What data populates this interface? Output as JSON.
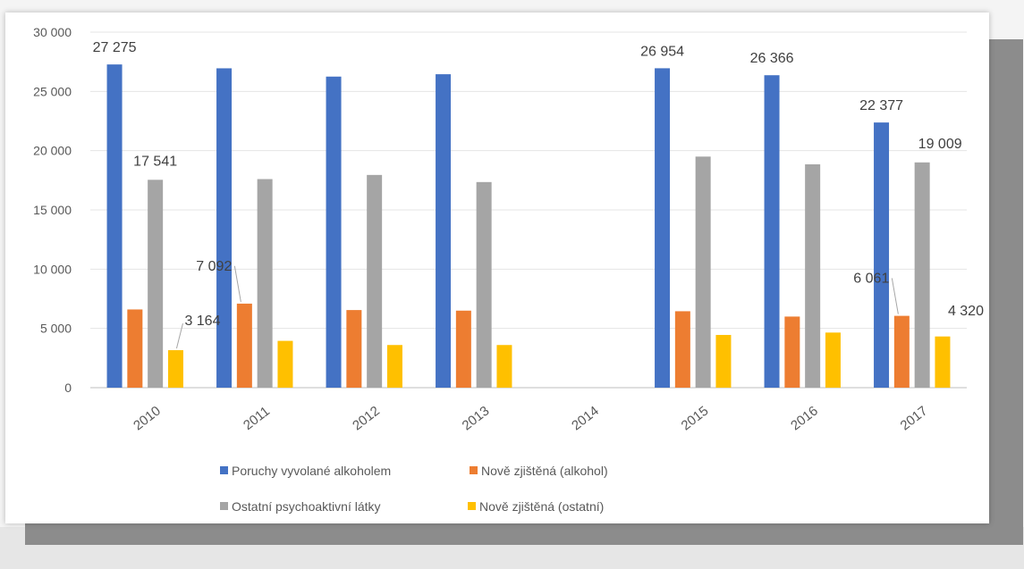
{
  "chart_data": {
    "type": "bar",
    "categories": [
      "2010",
      "2011",
      "2012",
      "2013",
      "2014",
      "2015",
      "2016",
      "2017"
    ],
    "ylim": [
      0,
      30000
    ],
    "yticks": [
      0,
      5000,
      10000,
      15000,
      20000,
      25000,
      30000
    ],
    "ytick_labels": [
      "0",
      "5 000",
      "10 000",
      "15 000",
      "20 000",
      "25 000",
      "30 000"
    ],
    "grid": true,
    "legend_position": "bottom",
    "series": [
      {
        "name": "Poruchy vyvolané alkoholem",
        "color": "#4472c4",
        "values": [
          27275,
          26950,
          26250,
          26450,
          null,
          26954,
          26366,
          22377
        ]
      },
      {
        "name": "Nově zjištěná (alkohol)",
        "color": "#ed7d31",
        "values": [
          6600,
          7092,
          6550,
          6500,
          null,
          6450,
          6000,
          6061
        ]
      },
      {
        "name": "Ostatní psychoaktivní látky",
        "color": "#a5a5a5",
        "values": [
          17541,
          17600,
          17950,
          17350,
          null,
          19500,
          18850,
          19009
        ]
      },
      {
        "name": "Nově zjištěná (ostatní)",
        "color": "#ffc000",
        "values": [
          3164,
          3950,
          3600,
          3600,
          null,
          4450,
          4650,
          4320
        ]
      }
    ],
    "data_labels": [
      {
        "series": 0,
        "index": 0,
        "text": "27 275"
      },
      {
        "series": 0,
        "index": 5,
        "text": "26 954"
      },
      {
        "series": 0,
        "index": 6,
        "text": "26 366"
      },
      {
        "series": 0,
        "index": 7,
        "text": "22 377"
      },
      {
        "series": 2,
        "index": 0,
        "text": "17 541"
      },
      {
        "series": 2,
        "index": 7,
        "text": "19 009"
      },
      {
        "series": 1,
        "index": 1,
        "text": "7 092"
      },
      {
        "series": 1,
        "index": 7,
        "text": "6 061"
      },
      {
        "series": 3,
        "index": 0,
        "text": "3 164"
      },
      {
        "series": 3,
        "index": 7,
        "text": "4 320"
      }
    ]
  }
}
